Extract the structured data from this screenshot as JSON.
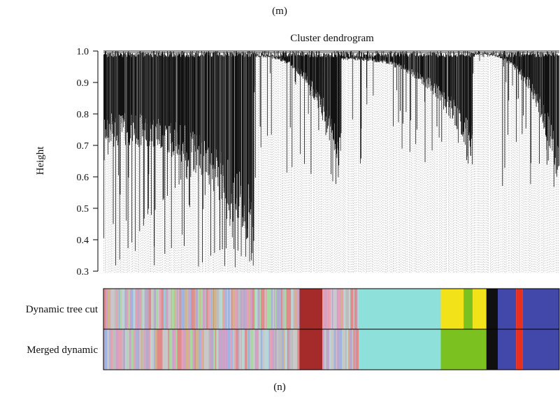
{
  "panel_labels": {
    "top": "(m)",
    "bottom": "(n)"
  },
  "chart_data": {
    "type": "dendrogram",
    "title": "Cluster dendrogram",
    "ylabel": "Height",
    "xlabel": "",
    "ylim": [
      0.3,
      1.0
    ],
    "yticks": [
      {
        "value": 1.0,
        "label": "1.0"
      },
      {
        "value": 0.9,
        "label": "0.9"
      },
      {
        "value": 0.8,
        "label": "0.8"
      },
      {
        "value": 0.7,
        "label": "0.7"
      },
      {
        "value": 0.6,
        "label": "0.6"
      },
      {
        "value": 0.5,
        "label": "0.5"
      },
      {
        "value": 0.4,
        "label": "0.4"
      },
      {
        "value": 0.3,
        "label": "0.3"
      }
    ],
    "branches": [
      {
        "from": 0.0,
        "to": 0.33,
        "min_height": 0.31,
        "drop_height": 0.7,
        "density": "dense"
      },
      {
        "from": 0.33,
        "to": 0.52,
        "min_height": 0.57,
        "drop_height": 0.98,
        "density": "dense"
      },
      {
        "from": 0.52,
        "to": 0.81,
        "min_height": 0.64,
        "drop_height": 0.97,
        "density": "dense"
      },
      {
        "from": 0.81,
        "to": 1.0,
        "min_height": 0.55,
        "drop_height": 0.99,
        "density": "dense"
      }
    ],
    "color_bars": [
      {
        "label": "Dynamic tree cut",
        "segments": [
          {
            "start": 0.0,
            "end": 0.43,
            "color": "mixed"
          },
          {
            "start": 0.43,
            "end": 0.48,
            "color": "#a52a2a"
          },
          {
            "start": 0.48,
            "end": 0.56,
            "color": "mixed"
          },
          {
            "start": 0.56,
            "end": 0.74,
            "color": "#8ee0da"
          },
          {
            "start": 0.74,
            "end": 0.79,
            "color": "#f2e21a"
          },
          {
            "start": 0.79,
            "end": 0.81,
            "color": "#7bc11f"
          },
          {
            "start": 0.81,
            "end": 0.84,
            "color": "#f2e21a"
          },
          {
            "start": 0.84,
            "end": 0.865,
            "color": "#101010"
          },
          {
            "start": 0.865,
            "end": 0.905,
            "color": "#4248aa"
          },
          {
            "start": 0.905,
            "end": 0.92,
            "color": "#e83020"
          },
          {
            "start": 0.92,
            "end": 1.0,
            "color": "#4248aa"
          }
        ]
      },
      {
        "label": "Merged dynamic",
        "segments": [
          {
            "start": 0.0,
            "end": 0.43,
            "color": "mixed"
          },
          {
            "start": 0.43,
            "end": 0.48,
            "color": "#a52a2a"
          },
          {
            "start": 0.48,
            "end": 0.56,
            "color": "mixed"
          },
          {
            "start": 0.56,
            "end": 0.74,
            "color": "#8ee0da"
          },
          {
            "start": 0.74,
            "end": 0.84,
            "color": "#7bc11f"
          },
          {
            "start": 0.84,
            "end": 0.865,
            "color": "#101010"
          },
          {
            "start": 0.865,
            "end": 0.905,
            "color": "#4248aa"
          },
          {
            "start": 0.905,
            "end": 0.92,
            "color": "#e83020"
          },
          {
            "start": 0.92,
            "end": 1.0,
            "color": "#4248aa"
          }
        ]
      }
    ],
    "mixed_palette": [
      "#c8c8c8",
      "#b7a9c9",
      "#e3a1b6",
      "#9fb4e0",
      "#a8d9a1",
      "#d2b48c",
      "#cfa0c9",
      "#b8d6d6",
      "#e08a8a",
      "#bdbdbd"
    ],
    "colors": {
      "line": "#111111",
      "leaf": "#9a9a9a",
      "border": "#000000"
    }
  }
}
